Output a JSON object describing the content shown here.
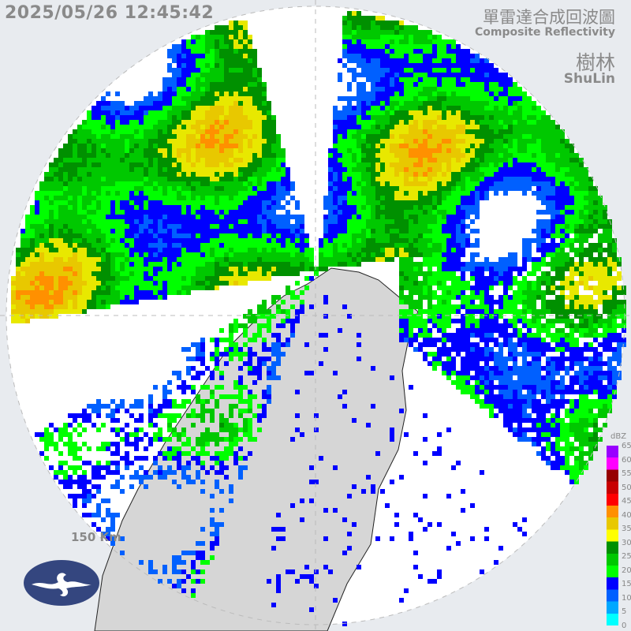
{
  "header": {
    "timestamp": "2025/05/26 12:45:42",
    "title": "單雷達合成回波圖",
    "subtitle": "Composite Reflectivity",
    "station": "樹林",
    "station_en": "ShuLin"
  },
  "map": {
    "range_label": "150 Km",
    "logo": "cwa-logo"
  },
  "legend": {
    "unit": "dBZ",
    "ticks": [
      "65",
      "60",
      "55",
      "50",
      "45",
      "40",
      "35",
      "30",
      "25",
      "20",
      "15",
      "10",
      "5",
      "0"
    ],
    "colors": [
      "#00ffff",
      "#00a8ff",
      "#0060ff",
      "#0000ff",
      "#00ff00",
      "#00c800",
      "#009000",
      "#ffff00",
      "#e8c800",
      "#ff9000",
      "#ff0000",
      "#c80000",
      "#960000",
      "#ff00ff",
      "#9900ff"
    ]
  }
}
